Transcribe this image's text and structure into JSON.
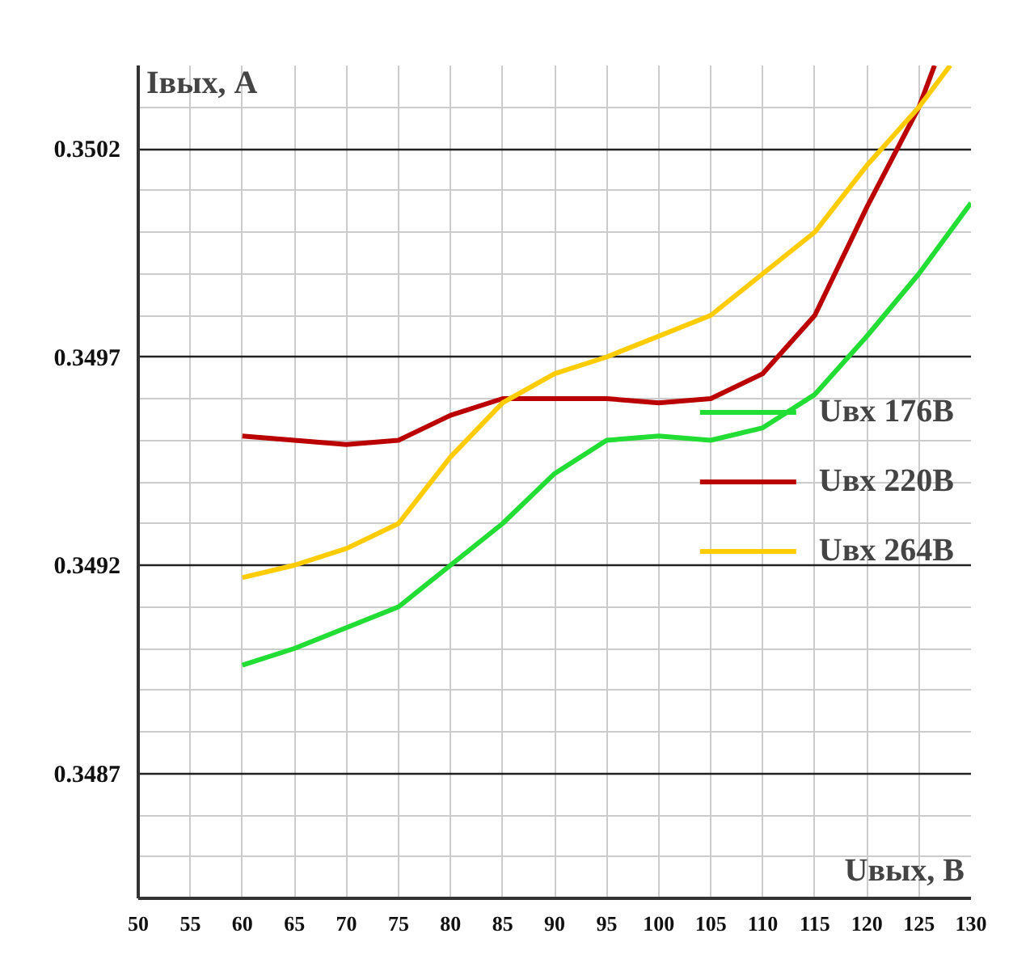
{
  "chart_data": {
    "type": "line",
    "xlabel": "Uвых, В",
    "ylabel": "Iвых, А",
    "x": [
      60,
      65,
      70,
      75,
      80,
      85,
      90,
      95,
      100,
      105,
      110,
      115,
      120,
      125,
      130
    ],
    "series": [
      {
        "name": "Uвх 176В",
        "color": "#22dd33",
        "values": [
          0.34896,
          0.349,
          0.34905,
          0.3491,
          0.3492,
          0.3493,
          0.34942,
          0.3495,
          0.34951,
          0.3495,
          0.34953,
          0.34961,
          0.34975,
          0.3499,
          0.35007
        ]
      },
      {
        "name": "Uвх 220В",
        "color": "#bb0000",
        "x": [
          60,
          65,
          70,
          75,
          80,
          85,
          90,
          95,
          100,
          105,
          110,
          115,
          120,
          125,
          126.5
        ],
        "values": [
          0.34951,
          0.3495,
          0.34949,
          0.3495,
          0.34956,
          0.3496,
          0.3496,
          0.3496,
          0.34959,
          0.3496,
          0.34966,
          0.3498,
          0.35006,
          0.3503,
          0.3504
        ]
      },
      {
        "name": "Uвх 264В",
        "color": "#ffcc00",
        "x": [
          60,
          65,
          70,
          75,
          80,
          85,
          90,
          95,
          100,
          105,
          110,
          115,
          120,
          125,
          128
        ],
        "values": [
          0.34917,
          0.3492,
          0.34924,
          0.3493,
          0.34946,
          0.34959,
          0.34966,
          0.3497,
          0.34975,
          0.3498,
          0.3499,
          0.35,
          0.35016,
          0.3503,
          0.3504
        ]
      }
    ],
    "xlim": [
      50,
      130
    ],
    "ylim": [
      0.3484,
      0.3504
    ],
    "xticks": [
      50,
      55,
      60,
      65,
      70,
      75,
      80,
      85,
      90,
      95,
      100,
      105,
      110,
      115,
      120,
      125,
      130
    ],
    "yticks": [
      {
        "value": 0.3485,
        "label": null
      },
      {
        "value": 0.3486,
        "label": null
      },
      0.3487,
      {
        "value": 0.3488,
        "label": null
      },
      {
        "value": 0.3489,
        "label": null
      },
      {
        "value": 0.349,
        "label": null
      },
      {
        "value": 0.3491,
        "label": null
      },
      0.3492,
      {
        "value": 0.3493,
        "label": null
      },
      {
        "value": 0.3494,
        "label": null
      },
      {
        "value": 0.3495,
        "label": null
      },
      {
        "value": 0.3496,
        "label": null
      },
      0.3497,
      {
        "value": 0.3498,
        "label": null
      },
      {
        "value": 0.3499,
        "label": null
      },
      {
        "value": 0.35,
        "label": null
      },
      {
        "value": 0.3501,
        "label": null
      },
      0.3502,
      {
        "value": 0.3503,
        "label": null
      }
    ],
    "grid": true,
    "legend": "right",
    "marker": "none",
    "line_style": "solid"
  }
}
